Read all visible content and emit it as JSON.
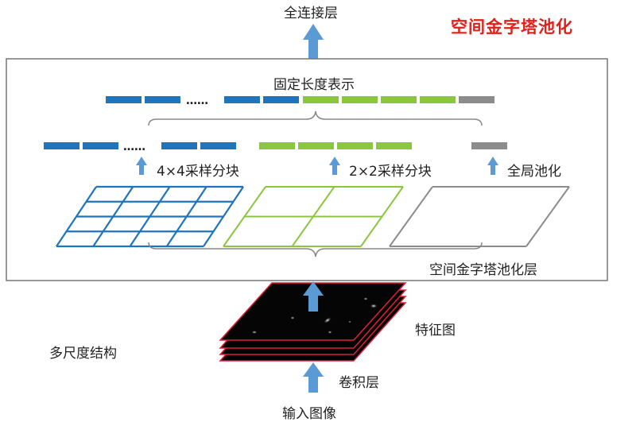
{
  "title": "空间金字塔池化",
  "labels": {
    "fc_layer": "全连接层",
    "fixed_length": "固定长度表示",
    "pool_4x4": "4×4采样分块",
    "pool_2x2": "2×2采样分块",
    "global_pool": "全局池化",
    "spp_layer": "空间金字塔池化层",
    "feature_map": "特征图",
    "multi_scale": "多尺度结构",
    "conv_layer": "卷积层",
    "input_image": "输入图像"
  },
  "colors": {
    "blue": "#1f74bb",
    "green": "#8cc63f",
    "gray": "#8c8c8c",
    "arrow": "#5b9bd5",
    "title_red": "#e0201a",
    "feature_border": "#e0203a"
  }
}
